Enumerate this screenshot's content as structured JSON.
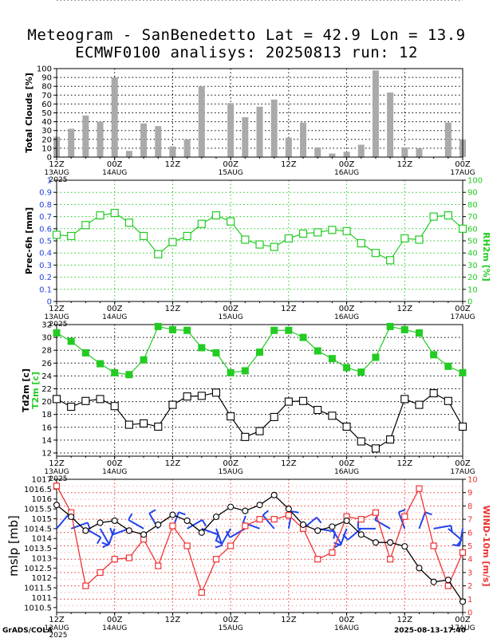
{
  "title_line1": "Meteogram - SanBenedetto Lat = 42.9 Lon = 13.9",
  "title_line2": "ECMWF0100 analisys: 20250813 run: 12",
  "footer_left": "GrADS/COLA",
  "footer_right": "2025-08-13-17:40",
  "colors": {
    "green": "#22cc22",
    "red": "#ee3333",
    "blue": "#2244ee",
    "bar": "#aaaaaa",
    "axis_blue": "#2244dd"
  },
  "time_axis": {
    "ticks": [
      {
        "label": "12Z",
        "date": "13AUG",
        "year": "2025"
      },
      {
        "label": "00Z",
        "date": "14AUG",
        "year": ""
      },
      {
        "label": "12Z",
        "date": "",
        "year": ""
      },
      {
        "label": "00Z",
        "date": "15AUG",
        "year": ""
      },
      {
        "label": "12Z",
        "date": "",
        "year": ""
      },
      {
        "label": "00Z",
        "date": "16AUG",
        "year": ""
      },
      {
        "label": "12Z",
        "date": "",
        "year": ""
      },
      {
        "label": "00Z",
        "date": "17AUG",
        "year": ""
      }
    ],
    "hours_start": 0,
    "hours_end": 84,
    "step_hours": 3
  },
  "chart_data": [
    {
      "type": "bar",
      "ylabel": "Total Clouds [%]",
      "ylim": [
        0,
        100
      ],
      "yticks": [
        "0",
        "10",
        "20",
        "30",
        "40",
        "50",
        "60",
        "70",
        "80",
        "90",
        "100"
      ],
      "values": [
        23,
        32,
        47,
        40,
        90,
        7,
        38,
        35,
        12,
        20,
        80,
        0,
        61,
        45,
        57,
        65,
        22,
        39,
        11,
        4,
        6,
        14,
        98,
        73,
        11,
        10,
        0,
        39,
        20
      ]
    },
    {
      "type": "line",
      "ylabel_left": "Prec-6h [mm]",
      "ylabel_right": "RH2m [%]",
      "ylim_left": [
        0,
        1
      ],
      "ylim_right": [
        0,
        100
      ],
      "yticks_left": [
        "0",
        "0.1",
        "0.2",
        "0.3",
        "0.4",
        "0.5",
        "0.6",
        "0.7",
        "0.8",
        "0.9",
        "1"
      ],
      "yticks_right": [
        "0",
        "10",
        "20",
        "30",
        "40",
        "50",
        "60",
        "70",
        "80",
        "90",
        "100"
      ],
      "rh_values": [
        55,
        54,
        63,
        71,
        73,
        65,
        54,
        39,
        49,
        54,
        64,
        71,
        66,
        51,
        47,
        45,
        52,
        56,
        57,
        59,
        58,
        48,
        40,
        34,
        52,
        51,
        70,
        71,
        60
      ]
    },
    {
      "type": "line",
      "ylabel_left": "Td2m [c]",
      "ylabel_left2": "T2m [c]",
      "ylim": [
        11.5,
        32
      ],
      "yticks": [
        "12",
        "14",
        "16",
        "18",
        "20",
        "22",
        "24",
        "26",
        "28",
        "30",
        "32"
      ],
      "t2m_values": [
        30.7,
        29.4,
        27.6,
        25.9,
        24.5,
        24.2,
        26.5,
        31.7,
        31.2,
        31.1,
        28.4,
        27.6,
        24.5,
        24.8,
        27.7,
        31.1,
        31.1,
        30,
        27.9,
        26.7,
        25.3,
        24.6,
        26.9,
        31.7,
        31.2,
        30.7,
        27.3,
        25.5,
        24.5
      ],
      "td2m_values": [
        20.4,
        19.2,
        20.1,
        20.4,
        19.3,
        16.4,
        16.6,
        16.1,
        19.5,
        20.8,
        20.9,
        21.4,
        17.7,
        14.5,
        15.4,
        17.6,
        20,
        20.1,
        18.7,
        17.8,
        16.1,
        13.8,
        12.7,
        14.1,
        20.4,
        19.5,
        21.3,
        20.1,
        16.1
      ]
    },
    {
      "type": "line",
      "ylabel_left": "mslp [mb]",
      "ylabel_right": "WIND-10m [m/s]",
      "ylim_left": [
        1010.25,
        1017
      ],
      "ylim_right": [
        0,
        10
      ],
      "yticks_left": [
        "1010.5",
        "1011",
        "1011.5",
        "1012",
        "1012.5",
        "1013",
        "1013.5",
        "1014",
        "1014.5",
        "1015",
        "1015.5",
        "1016",
        "1016.5",
        "1017"
      ],
      "yticks_right": [
        "0",
        "1",
        "2",
        "3",
        "4",
        "5",
        "6",
        "7",
        "8",
        "9",
        "10"
      ],
      "mslp_values": [
        1015.7,
        1015.1,
        1014.4,
        1014.8,
        1014.9,
        1014.4,
        1014.2,
        1014.7,
        1015.2,
        1014.9,
        1014.3,
        1015.1,
        1015.6,
        1015.4,
        1015.7,
        1016.2,
        1015.5,
        1014.7,
        1014.4,
        1014.6,
        1014.9,
        1014.2,
        1013.8,
        1013.8,
        1013.6,
        1012.5,
        1011.8,
        1011.9,
        1010.8
      ],
      "wind_values": [
        9.5,
        7.5,
        2,
        3,
        4,
        4.1,
        5.5,
        3.5,
        6.5,
        5,
        1.5,
        4,
        5,
        6.5,
        7,
        7,
        7.3,
        6.3,
        4,
        4.5,
        7.2,
        7,
        7.5,
        4,
        7.2,
        9.3,
        5,
        2,
        4.5
      ],
      "wind_dir_deg": [
        40,
        70,
        120,
        150,
        200,
        250,
        300,
        330,
        20,
        60,
        110,
        160,
        210,
        240,
        290,
        320,
        10,
        50,
        100,
        150,
        200,
        230,
        270,
        300,
        340,
        20,
        80,
        130,
        190
      ]
    }
  ]
}
